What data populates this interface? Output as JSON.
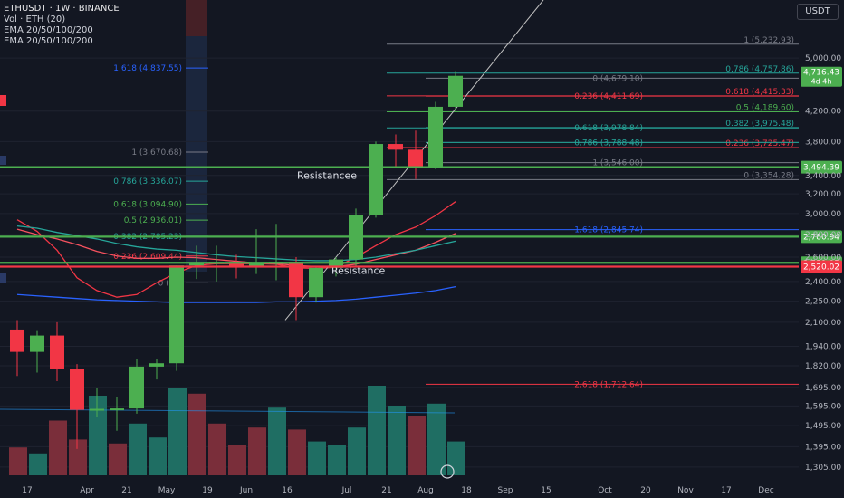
{
  "header": {
    "symbol_line": "ETHUSDT · 1W · BINANCE",
    "vol_line": "Vol · ETH (20)",
    "ema_line_1": "EMA 20/50/100/200",
    "ema_line_2": "EMA 20/50/100/200",
    "unit": "USDT"
  },
  "colors": {
    "background": "#131722",
    "up": "#4caf50",
    "down": "#f23645",
    "grid": "#1f2330",
    "text": "#b2b5be",
    "resistance": "#4caf50",
    "support": "#f23645"
  },
  "chart_data": {
    "type": "candlestick",
    "price_axis": {
      "scale": "log",
      "ticks": [
        "5,000.00",
        "4,200.00",
        "3,800.00",
        "3,400.00",
        "3,200.00",
        "3,000.00",
        "2,800.00",
        "2,600.00",
        "2,400.00",
        "2,250.00",
        "2,100.00",
        "1,940.00",
        "1,820.00",
        "1,695.00",
        "1,595.00",
        "1,495.00",
        "1,395.00",
        "1,305.00"
      ],
      "ylim": [
        1270,
        5700
      ]
    },
    "time_axis": {
      "labels": [
        "17",
        "Apr",
        "21",
        "May",
        "19",
        "Jun",
        "16",
        "Jul",
        "21",
        "Aug",
        "18",
        "Sep",
        "15",
        "Oct",
        "20",
        "Nov",
        "17",
        "Dec"
      ]
    },
    "candles": [
      {
        "o": 2050,
        "h": 2115,
        "l": 1760,
        "c": 1905
      },
      {
        "o": 1905,
        "h": 2040,
        "l": 1780,
        "c": 2010
      },
      {
        "o": 2010,
        "h": 2100,
        "l": 1730,
        "c": 1800
      },
      {
        "o": 1800,
        "h": 1830,
        "l": 1385,
        "c": 1575
      },
      {
        "o": 1575,
        "h": 1690,
        "l": 1540,
        "c": 1580
      },
      {
        "o": 1580,
        "h": 1640,
        "l": 1470,
        "c": 1582
      },
      {
        "o": 1582,
        "h": 1860,
        "l": 1555,
        "c": 1815
      },
      {
        "o": 1815,
        "h": 1860,
        "l": 1740,
        "c": 1835
      },
      {
        "o": 1835,
        "h": 2530,
        "l": 1790,
        "c": 2530
      },
      {
        "o": 2530,
        "h": 2700,
        "l": 2420,
        "c": 2555
      },
      {
        "o": 2555,
        "h": 2700,
        "l": 2400,
        "c": 2560
      },
      {
        "o": 2560,
        "h": 2620,
        "l": 2425,
        "c": 2515
      },
      {
        "o": 2515,
        "h": 2850,
        "l": 2460,
        "c": 2550
      },
      {
        "o": 2550,
        "h": 2900,
        "l": 2410,
        "c": 2560
      },
      {
        "o": 2560,
        "h": 2600,
        "l": 2115,
        "c": 2280
      },
      {
        "o": 2280,
        "h": 2520,
        "l": 2240,
        "c": 2510
      },
      {
        "o": 2510,
        "h": 2600,
        "l": 2440,
        "c": 2580
      },
      {
        "o": 2580,
        "h": 3050,
        "l": 2520,
        "c": 2985
      },
      {
        "o": 2985,
        "h": 3800,
        "l": 2960,
        "c": 3770
      },
      {
        "o": 3770,
        "h": 3890,
        "l": 3500,
        "c": 3700
      },
      {
        "o": 3700,
        "h": 3940,
        "l": 3360,
        "c": 3480
      },
      {
        "o": 3480,
        "h": 4330,
        "l": 3470,
        "c": 4260
      },
      {
        "o": 4260,
        "h": 4790,
        "l": 4200,
        "c": 4716
      }
    ],
    "volume": [
      {
        "v": 28,
        "up": false
      },
      {
        "v": 22,
        "up": true
      },
      {
        "v": 55,
        "up": false
      },
      {
        "v": 36,
        "up": false
      },
      {
        "v": 80,
        "up": true
      },
      {
        "v": 32,
        "up": false
      },
      {
        "v": 52,
        "up": true
      },
      {
        "v": 38,
        "up": true
      },
      {
        "v": 88,
        "up": true
      },
      {
        "v": 82,
        "up": false
      },
      {
        "v": 52,
        "up": false
      },
      {
        "v": 30,
        "up": false
      },
      {
        "v": 48,
        "up": false
      },
      {
        "v": 68,
        "up": true
      },
      {
        "v": 46,
        "up": false
      },
      {
        "v": 34,
        "up": true
      },
      {
        "v": 30,
        "up": true
      },
      {
        "v": 48,
        "up": true
      },
      {
        "v": 90,
        "up": true
      },
      {
        "v": 70,
        "up": true
      },
      {
        "v": 60,
        "up": false
      },
      {
        "v": 72,
        "up": true
      },
      {
        "v": 34,
        "up": true
      }
    ],
    "ema_lines": [
      {
        "color": "#f23645",
        "points": [
          2940,
          2830,
          2660,
          2430,
          2330,
          2280,
          2300,
          2390,
          2470,
          2530,
          2545,
          2545,
          2545,
          2540,
          2510,
          2505,
          2515,
          2600,
          2700,
          2800,
          2870,
          2980,
          3120
        ]
      },
      {
        "color": "#f7525f",
        "points": [
          2850,
          2800,
          2760,
          2710,
          2650,
          2610,
          2590,
          2590,
          2600,
          2595,
          2580,
          2565,
          2550,
          2545,
          2530,
          2520,
          2520,
          2540,
          2580,
          2620,
          2660,
          2730,
          2810
        ]
      },
      {
        "color": "#26a69a",
        "points": [
          2880,
          2860,
          2820,
          2790,
          2760,
          2720,
          2690,
          2670,
          2660,
          2640,
          2620,
          2605,
          2595,
          2585,
          2575,
          2570,
          2570,
          2580,
          2600,
          2630,
          2660,
          2700,
          2740
        ]
      },
      {
        "color": "#2962ff",
        "points": [
          2300,
          2290,
          2280,
          2270,
          2260,
          2255,
          2250,
          2245,
          2240,
          2240,
          2240,
          2240,
          2240,
          2245,
          2245,
          2250,
          2255,
          2265,
          2280,
          2295,
          2310,
          2330,
          2360
        ]
      }
    ],
    "horizontal_levels": [
      {
        "price": 3494.39,
        "color": "#4caf50",
        "label": "Resistancee",
        "badge": "3,494.39"
      },
      {
        "price": 2780.94,
        "color": "#4caf50",
        "label": "",
        "badge": "2,780.94"
      },
      {
        "price": 2551.95,
        "color": "#4caf50",
        "label": "Resistance",
        "badge": "2,551.95"
      },
      {
        "price": 2520.02,
        "color": "#f23645",
        "label": "",
        "badge": "2,520.02"
      }
    ],
    "last_price": {
      "value": "4,716.43",
      "countdown": "4d 4h"
    },
    "fib_left": [
      {
        "text": "1.618 (4,837.55)",
        "price": 4837.55,
        "color": "#2962ff"
      },
      {
        "text": "1 (3,670.68)",
        "price": 3670.68,
        "color": "#787b86"
      },
      {
        "text": "0.786 (3,336.07)",
        "price": 3336.07,
        "color": "#26a69a"
      },
      {
        "text": "0.618 (3,094.90)",
        "price": 3094.9,
        "color": "#4caf50"
      },
      {
        "text": "0.5 (2,936.01)",
        "price": 2936.01,
        "color": "#4caf50"
      },
      {
        "text": "0.382 (2,785.23)",
        "price": 2785.23,
        "color": "#26a69a"
      },
      {
        "text": "0.236 (2,609.44)",
        "price": 2609.44,
        "color": "#f23645"
      },
      {
        "text": "0 (2,3",
        "price": 2390,
        "color": "#787b86"
      }
    ],
    "fib_right_1": [
      {
        "text": "1 (5,232.93)",
        "price": 5232.93,
        "color": "#787b86"
      },
      {
        "text": "0.786 (4,757.86)",
        "price": 4757.86,
        "color": "#26a69a"
      },
      {
        "text": "0.618 (4,415.33)",
        "price": 4415.33,
        "color": "#f23645"
      },
      {
        "text": "0.5 (4,189.60)",
        "price": 4189.6,
        "color": "#4caf50"
      },
      {
        "text": "0.382 (3,975.48)",
        "price": 3975.48,
        "color": "#26a69a"
      },
      {
        "text": "0.236 (3,725.47)",
        "price": 3725.47,
        "color": "#f23645"
      },
      {
        "text": "0 (3,354.28)",
        "price": 3354.28,
        "color": "#787b86"
      }
    ],
    "fib_right_2": [
      {
        "text": "0 (4,679.10)",
        "price": 4679.1,
        "color": "#787b86"
      },
      {
        "text": "0.236 (4,411.69)",
        "price": 4411.69,
        "color": "#f23645"
      },
      {
        "text": "0.618 (3,978.84)",
        "price": 3978.84,
        "color": "#26a69a"
      },
      {
        "text": "0.786 (3,788.48)",
        "price": 3788.48,
        "color": "#26a69a"
      },
      {
        "text": "1 (3,546.00)",
        "price": 3546.0,
        "color": "#787b86"
      },
      {
        "text": "1.618 (2,845.74)",
        "price": 2845.74,
        "color": "#2962ff"
      },
      {
        "text": "2.618 (1,712.64)",
        "price": 1712.64,
        "color": "#f23645"
      }
    ]
  }
}
